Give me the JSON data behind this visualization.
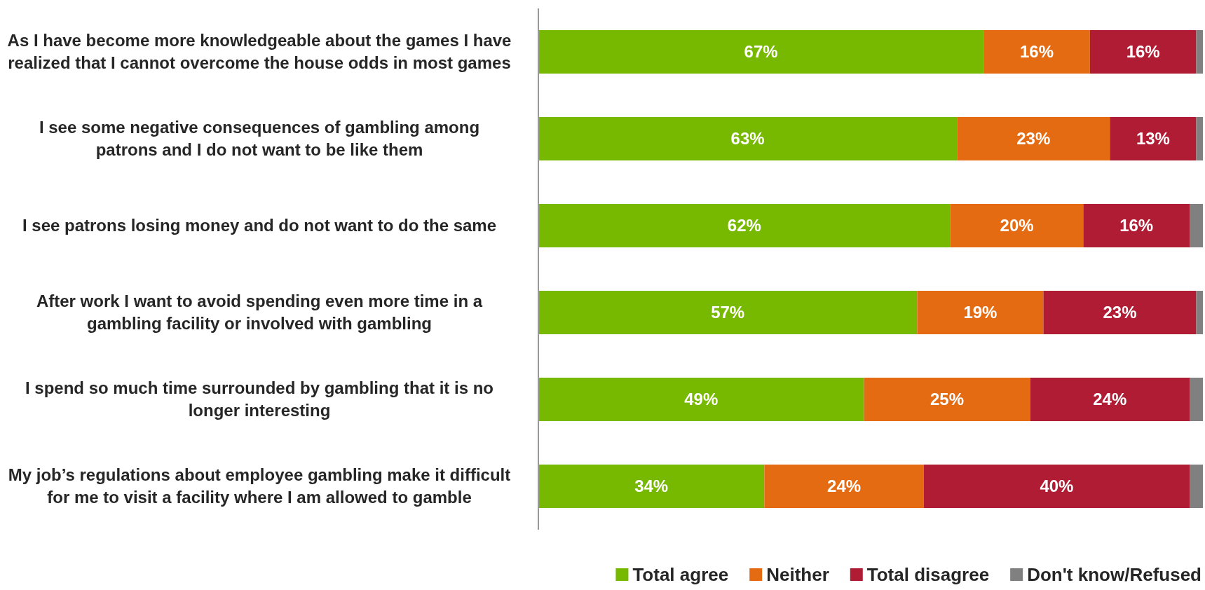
{
  "chart_data": {
    "type": "bar",
    "orientation": "horizontal",
    "stacked": true,
    "categories": [
      "As I have become more knowledgeable about the games I have realized that I cannot overcome the house odds in most games",
      "I see some negative consequences of gambling among patrons and I do not want to be like them",
      "I see patrons losing money and do not want to do the same",
      "After work I want to avoid spending even more time in a gambling facility or involved with gambling",
      "I spend so much time surrounded by gambling that it is no longer interesting",
      "My job’s regulations about employee gambling make it difficult for me to visit a facility where I am allowed to gamble"
    ],
    "series": [
      {
        "name": "Total agree",
        "color": "#77b800",
        "values": [
          67,
          63,
          62,
          57,
          49,
          34
        ],
        "value_labels": [
          "67%",
          "63%",
          "62%",
          "57%",
          "49%",
          "34%"
        ]
      },
      {
        "name": "Neither",
        "color": "#e56b13",
        "values": [
          16,
          23,
          20,
          19,
          25,
          24
        ],
        "value_labels": [
          "16%",
          "23%",
          "20%",
          "19%",
          "25%",
          "24%"
        ]
      },
      {
        "name": "Total disagree",
        "color": "#b01c33",
        "values": [
          16,
          13,
          16,
          23,
          24,
          40
        ],
        "value_labels": [
          "16%",
          "13%",
          "16%",
          "23%",
          "24%",
          "40%"
        ]
      },
      {
        "name": "Don't know/Refused",
        "color": "#808080",
        "values": [
          1,
          1,
          2,
          1,
          2,
          2
        ]
      }
    ],
    "xlim": [
      0,
      100
    ],
    "tick_labels": "y",
    "legend": "bottom"
  }
}
